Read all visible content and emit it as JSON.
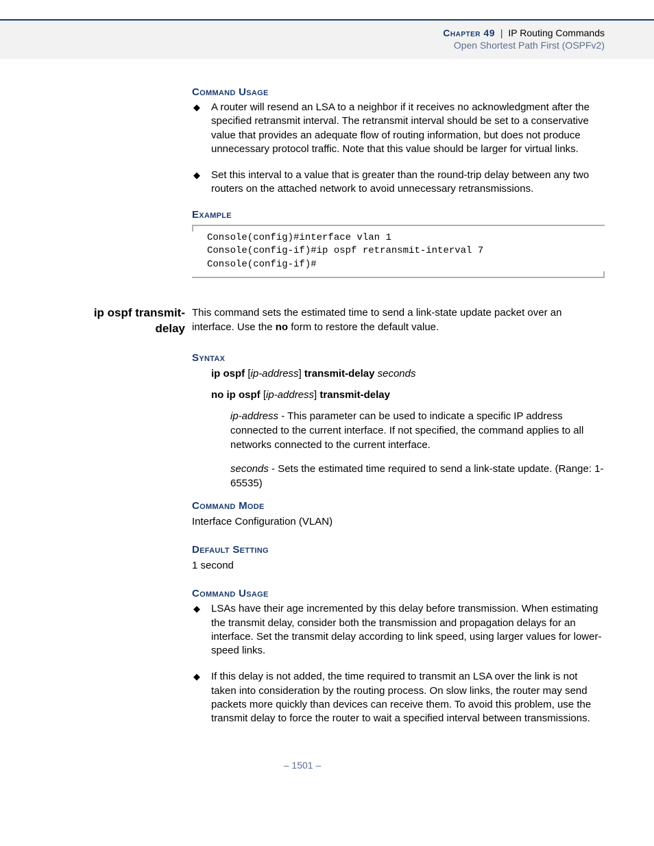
{
  "header": {
    "chapter_label": "Chapter 49",
    "chapter_title": "IP Routing Commands",
    "subtitle": "Open Shortest Path First (OSPFv2)"
  },
  "section1": {
    "command_usage_label": "Command Usage",
    "bullets": [
      "A router will resend an LSA to a neighbor if it receives no acknowledgment after the specified retransmit interval. The retransmit interval should be set to a conservative value that provides an adequate flow of routing information, but does not produce unnecessary protocol traffic. Note that this value should be larger for virtual links.",
      "Set this interval to a value that is greater than the round-trip delay between any two routers on the attached network to avoid unnecessary retransmissions."
    ],
    "example_label": "Example",
    "code": "Console(config)#interface vlan 1\nConsole(config-if)#ip ospf retransmit-interval 7\nConsole(config-if)#"
  },
  "command": {
    "name": "ip ospf transmit-delay",
    "description_pre": "This command sets the estimated time to send a link-state update packet over an interface. Use the ",
    "description_bold": "no",
    "description_post": " form to restore the default value.",
    "syntax_label": "Syntax",
    "syntax1": {
      "p1": "ip ospf",
      "p2": "ip-address",
      "p3": "transmit-delay",
      "p4": "seconds"
    },
    "syntax2": {
      "p1": "no ip ospf",
      "p2": "ip-address",
      "p3": "transmit-delay"
    },
    "param1_name": "ip-address",
    "param1_text": " - This parameter can be used to indicate a specific IP address connected to the current interface. If not specified, the command applies to all networks connected to the current interface.",
    "param2_name": "seconds",
    "param2_text": " - Sets the estimated time required to send a link-state update. (Range: 1-65535)",
    "command_mode_label": "Command Mode",
    "command_mode_text": "Interface Configuration (VLAN)",
    "default_setting_label": "Default Setting",
    "default_setting_text": "1 second",
    "command_usage_label": "Command Usage",
    "usage_bullets": [
      "LSAs have their age incremented by this delay before transmission. When estimating the transmit delay, consider both the transmission and propagation delays for an interface. Set the transmit delay according to link speed, using larger values for lower-speed links.",
      "If this delay is not added, the time required to transmit an LSA over the link is not taken into consideration by the routing process. On slow links, the router may send packets more quickly than devices can receive them. To avoid this problem, use the transmit delay to force the router to wait a specified interval between transmissions."
    ]
  },
  "page_number": "–  1501  –"
}
